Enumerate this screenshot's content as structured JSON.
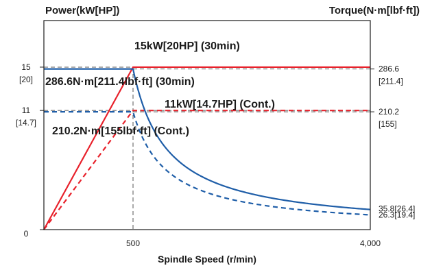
{
  "chart_data": {
    "type": "line",
    "title": "",
    "ylabel_left": "Power(kW[HP])",
    "ylabel_right": "Torque(N·m[lbf·ft])",
    "xlabel": "Spindle Speed (r/min)",
    "x_ticks": [
      "500",
      "4,000"
    ],
    "y_left_ticks": [
      {
        "value": 0,
        "label": "0",
        "sublabel": ""
      },
      {
        "value": 11,
        "label": "11",
        "sublabel": "[14.7]"
      },
      {
        "value": 15,
        "label": "15",
        "sublabel": "[20]"
      }
    ],
    "y_right_ticks": [
      {
        "value": 210.2,
        "label": "210.2",
        "sublabel": "[155]"
      },
      {
        "value": 286.6,
        "label": "286.6",
        "sublabel": "[211.4]"
      }
    ],
    "end_labels": [
      "35.8[26.4]",
      "26.3[19.4]"
    ],
    "xlim": [
      0,
      4000
    ],
    "ylim_left": [
      0,
      19.3
    ],
    "ylim_right": [
      0,
      373
    ],
    "grid": "dashed reference lines at base speed and rated values",
    "series": [
      {
        "name": "15kW[20HP] (30min)",
        "axis": "power",
        "style": "solid",
        "color": "#e8212b",
        "x": [
          0,
          500,
          4000
        ],
        "y": [
          0,
          15,
          15
        ]
      },
      {
        "name": "11kW[14.7HP] (Cont.)",
        "axis": "power",
        "style": "dashed",
        "color": "#e8212b",
        "x": [
          0,
          500,
          4000
        ],
        "y": [
          0,
          11,
          11
        ]
      },
      {
        "name": "286.6N·m[211.4lbf·ft] (30min)",
        "axis": "torque",
        "style": "solid",
        "color": "#1f5ea8",
        "x": [
          0,
          500,
          1000,
          1500,
          2000,
          2500,
          3000,
          3500,
          4000
        ],
        "y": [
          286.6,
          286.6,
          143.3,
          95.5,
          71.7,
          57.3,
          47.8,
          40.9,
          35.8
        ]
      },
      {
        "name": "210.2N·m[155lbf·ft] (Cont.)",
        "axis": "torque",
        "style": "dashed",
        "color": "#1f5ea8",
        "x": [
          0,
          500,
          1000,
          1500,
          2000,
          2500,
          3000,
          3500,
          4000
        ],
        "y": [
          210.2,
          210.2,
          105.1,
          70.1,
          52.6,
          42.0,
          35.0,
          30.0,
          26.3
        ]
      }
    ]
  }
}
